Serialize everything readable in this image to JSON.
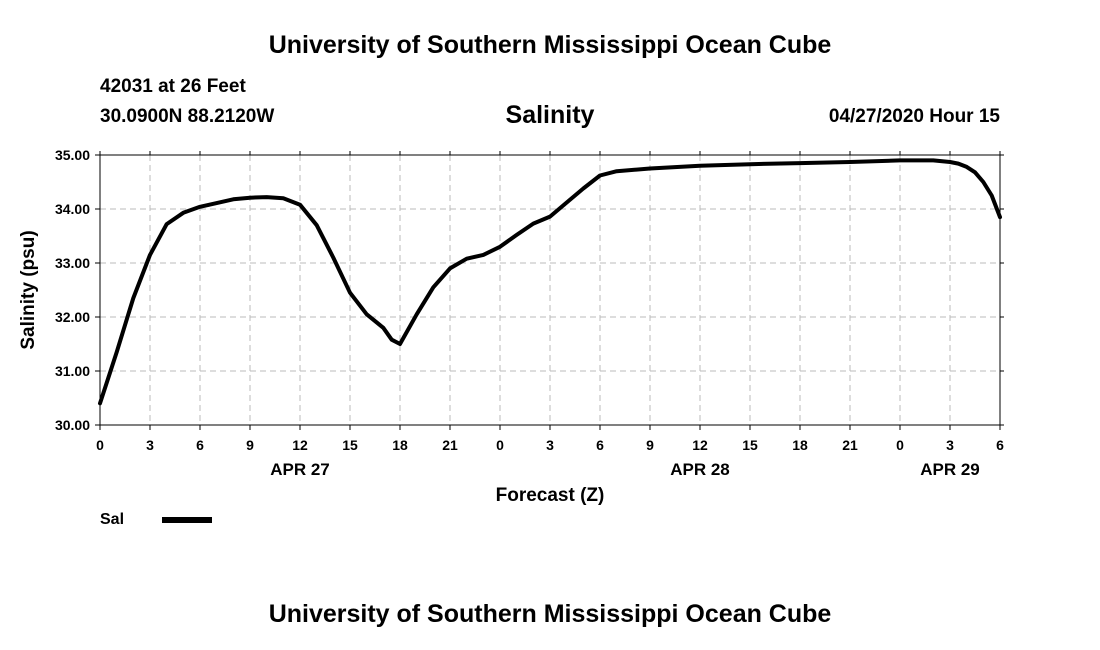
{
  "header": {
    "title": "University of Southern Mississippi Ocean Cube",
    "station": "42031 at 26 Feet",
    "location": "30.0900N 88.2120W",
    "chart_title": "Salinity",
    "run": "04/27/2020 Hour 15"
  },
  "footer": {
    "title": "University of Southern Mississippi Ocean Cube"
  },
  "colors": {
    "line": "#000000",
    "grid": "#bbbbbb",
    "axis": "#000000"
  },
  "chart_data": {
    "type": "line",
    "title": "Salinity",
    "xlabel": "Forecast (Z)",
    "ylabel": "Salinity (psu)",
    "xlim": [
      0,
      54
    ],
    "ylim": [
      30.0,
      35.0
    ],
    "grid": true,
    "legend": "bottom-left",
    "x_tick_values": [
      0,
      3,
      6,
      9,
      12,
      15,
      18,
      21,
      24,
      27,
      30,
      33,
      36,
      39,
      42,
      45,
      48,
      51,
      54
    ],
    "x_tick_labels": [
      "0",
      "3",
      "6",
      "9",
      "12",
      "15",
      "18",
      "21",
      "0",
      "3",
      "6",
      "9",
      "12",
      "15",
      "18",
      "21",
      "0",
      "3",
      "6"
    ],
    "date_labels": [
      {
        "x": 12,
        "label": "APR 27"
      },
      {
        "x": 36,
        "label": "APR 28"
      },
      {
        "x": 51,
        "label": "APR 29"
      }
    ],
    "y_tick_values": [
      30.0,
      31.0,
      32.0,
      33.0,
      34.0,
      35.0
    ],
    "y_tick_labels": [
      "30.00",
      "31.00",
      "32.00",
      "33.00",
      "34.00",
      "35.00"
    ],
    "series": [
      {
        "name": "Sal",
        "color": "#000000",
        "x": [
          0,
          1,
          2,
          3,
          4,
          5,
          6,
          7,
          8,
          9,
          10,
          11,
          12,
          13,
          14,
          15,
          16,
          17,
          17.5,
          18,
          19,
          20,
          21,
          22,
          23,
          24,
          25,
          26,
          27,
          28,
          29,
          30,
          31,
          33,
          36,
          39,
          42,
          45,
          48,
          49,
          50,
          51,
          51.5,
          52,
          52.5,
          53,
          53.5,
          54
        ],
        "y": [
          30.4,
          31.35,
          32.35,
          33.15,
          33.72,
          33.93,
          34.04,
          34.11,
          34.18,
          34.21,
          34.22,
          34.2,
          34.08,
          33.7,
          33.1,
          32.45,
          32.05,
          31.8,
          31.58,
          31.5,
          32.05,
          32.55,
          32.9,
          33.08,
          33.15,
          33.3,
          33.52,
          33.73,
          33.86,
          34.12,
          34.38,
          34.62,
          34.7,
          34.75,
          34.8,
          34.83,
          34.85,
          34.87,
          34.9,
          34.9,
          34.9,
          34.87,
          34.84,
          34.78,
          34.68,
          34.5,
          34.25,
          33.85
        ]
      }
    ]
  }
}
